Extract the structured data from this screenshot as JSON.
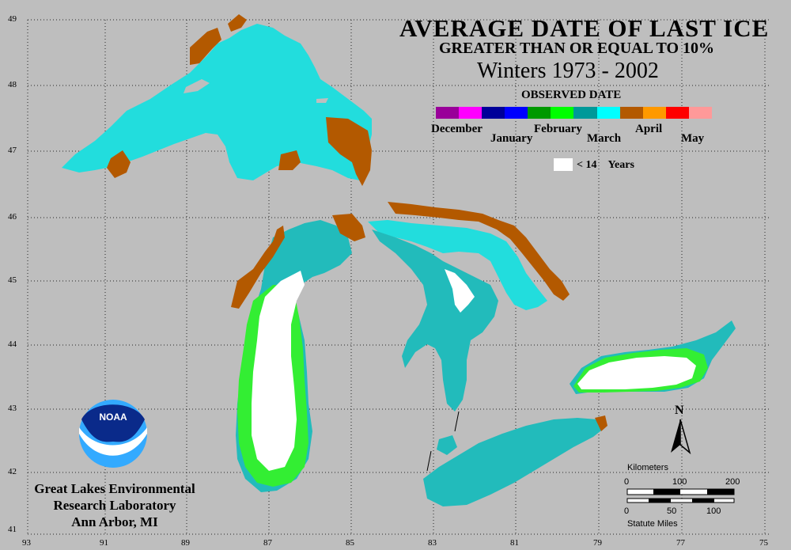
{
  "title": "AVERAGE DATE OF LAST ICE",
  "subtitle": "GREATER THAN OR EQUAL TO 10%",
  "period": "Winters 1973 - 2002",
  "legend": {
    "heading": "OBSERVED DATE",
    "months": [
      "December",
      "January",
      "February",
      "March",
      "April",
      "May"
    ],
    "colors": [
      "#990099",
      "#ff00ff",
      "#000099",
      "#0000ff",
      "#009900",
      "#00ff00",
      "#009999",
      "#00ffff",
      "#b35900",
      "#ff9900",
      "#ff0000",
      "#ff9999"
    ],
    "less_than_label": "< 14",
    "less_than_unit": "Years"
  },
  "axes": {
    "lat_ticks": [
      "49",
      "48",
      "47",
      "46",
      "45",
      "44",
      "43",
      "42",
      "41"
    ],
    "lon_ticks": [
      "93",
      "91",
      "89",
      "87",
      "85",
      "83",
      "81",
      "79",
      "77",
      "75"
    ]
  },
  "north_label": "N",
  "scale": {
    "km_label": "Kilometers",
    "km_ticks": [
      "0",
      "100",
      "200"
    ],
    "mi_label": "Statute Miles",
    "mi_ticks": [
      "0",
      "50",
      "100"
    ]
  },
  "agency": {
    "logo_text": "NOAA",
    "line1": "Great Lakes Environmental",
    "line2": "Research Laboratory",
    "line3": "Ann Arbor, MI"
  }
}
